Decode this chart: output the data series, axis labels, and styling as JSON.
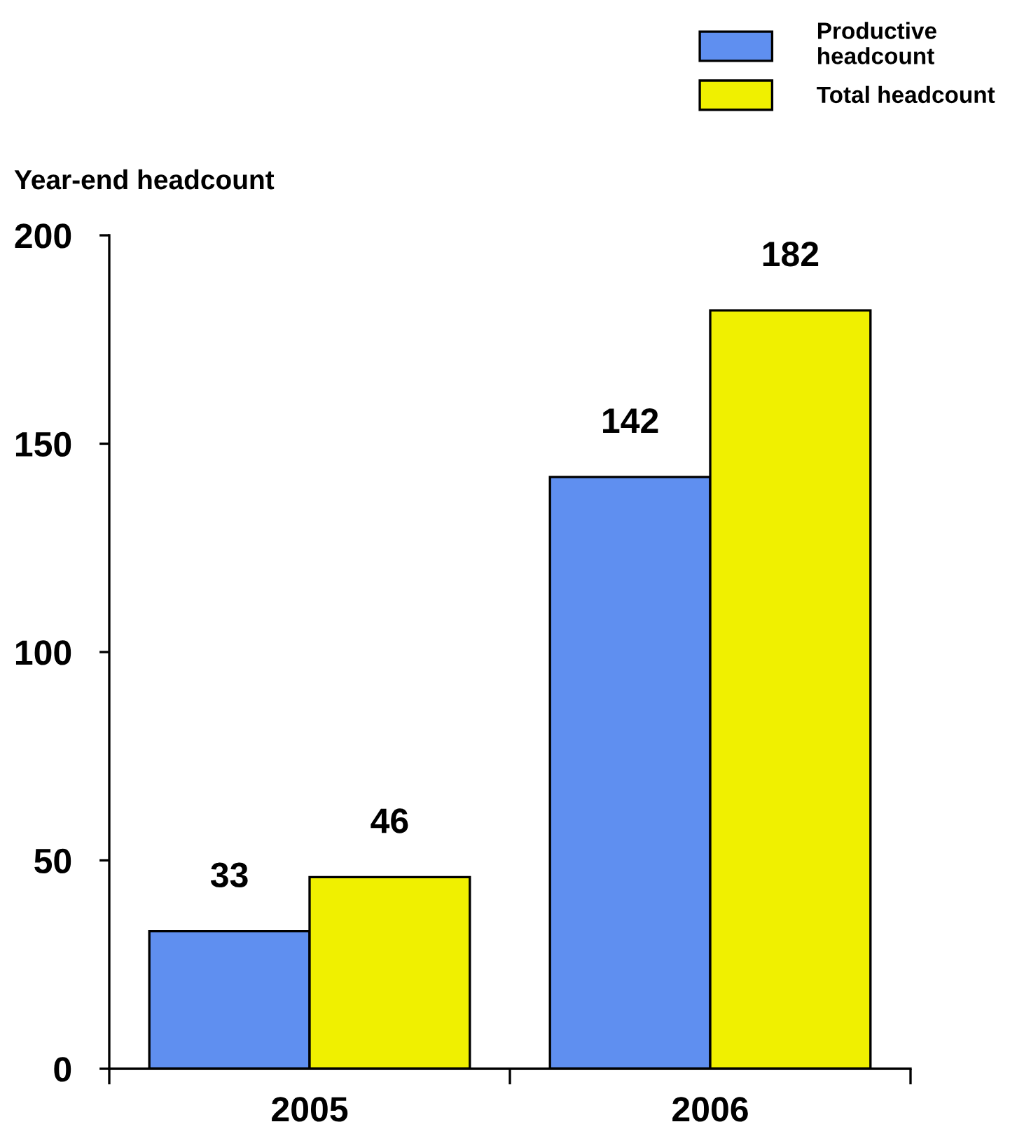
{
  "chart_data": {
    "type": "bar",
    "ylabel": "Year-end headcount",
    "categories": [
      "2005",
      "2006"
    ],
    "series": [
      {
        "name": "Productive\nheadcount",
        "color": "#5f8ff0",
        "values": [
          33,
          142
        ]
      },
      {
        "name": "Total headcount",
        "color": "#f0f000",
        "values": [
          46,
          182
        ]
      }
    ],
    "ylim": [
      0,
      200
    ],
    "yticks": [
      0,
      50,
      100,
      150,
      200
    ],
    "data_labels": true,
    "legend": "top right",
    "grid": false
  }
}
